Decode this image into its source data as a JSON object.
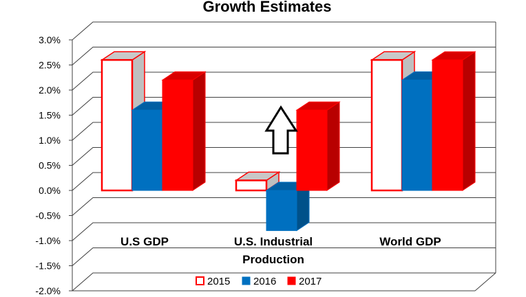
{
  "chart_data": {
    "type": "bar",
    "title": "Growth Estimates",
    "categories": [
      "U.S GDP",
      "U.S. Industrial Production",
      "World GDP"
    ],
    "category_lines": [
      [
        "U.S GDP"
      ],
      [
        "U.S. Industrial",
        "Production"
      ],
      [
        "World GDP"
      ]
    ],
    "series": [
      {
        "name": "2015",
        "values": [
          2.6,
          0.2,
          2.6
        ],
        "color": "#ffffff",
        "stroke": "#ff0000"
      },
      {
        "name": "2016",
        "values": [
          1.6,
          -0.8,
          2.2
        ],
        "color": "#0070c0",
        "stroke": "#0070c0"
      },
      {
        "name": "2017",
        "values": [
          2.2,
          1.6,
          2.6
        ],
        "color": "#ff0000",
        "stroke": "#ff0000"
      }
    ],
    "ylim": [
      -2.0,
      3.0
    ],
    "ytick_labels": [
      "3.0%",
      "2.5%",
      "2.0%",
      "1.5%",
      "1.0%",
      "0.5%",
      "0.0%",
      "-0.5%",
      "-1.0%",
      "-1.5%",
      "-2.0%"
    ],
    "grid": true,
    "legend_position": "bottom",
    "annotations": [
      {
        "type": "up-arrow",
        "category": "U.S. Industrial Production"
      }
    ],
    "xlabel": "",
    "ylabel": ""
  }
}
